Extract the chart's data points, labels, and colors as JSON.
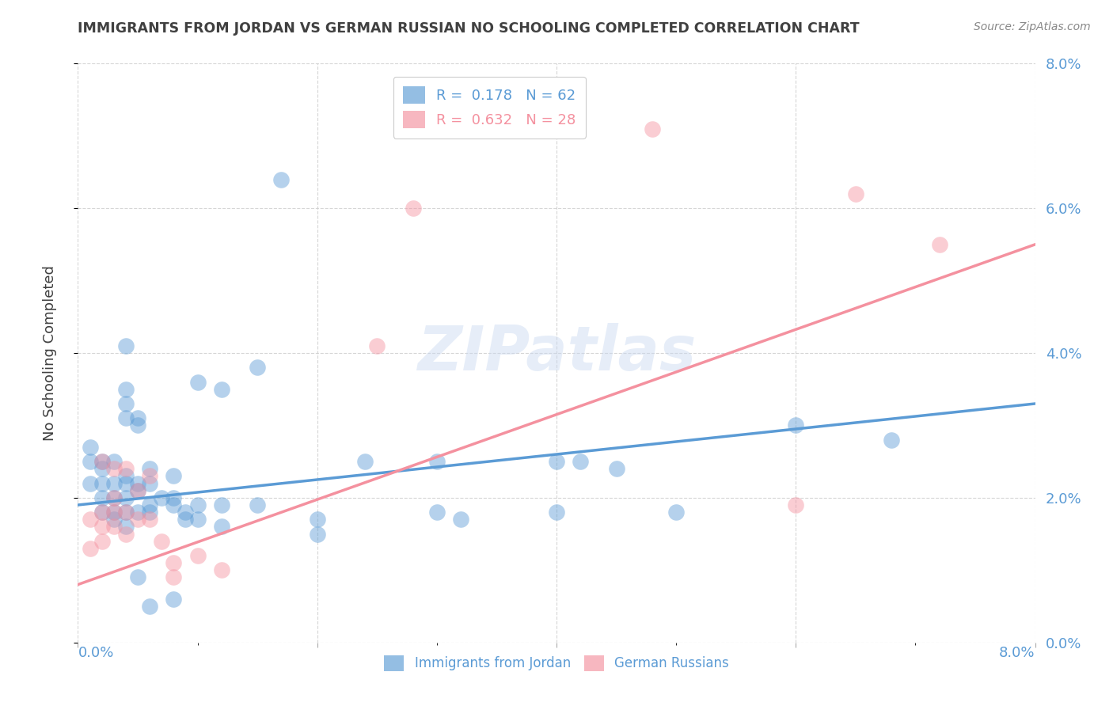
{
  "title": "IMMIGRANTS FROM JORDAN VS GERMAN RUSSIAN NO SCHOOLING COMPLETED CORRELATION CHART",
  "source": "Source: ZipAtlas.com",
  "ylabel": "No Schooling Completed",
  "watermark": "ZIPatlas",
  "legend_entries": [
    {
      "label": "R =  0.178   N = 62",
      "color": "#5b9bd5"
    },
    {
      "label": "R =  0.632   N = 28",
      "color": "#f4919f"
    }
  ],
  "legend_labels_bottom": [
    "Immigrants from Jordan",
    "German Russians"
  ],
  "xlim": [
    0.0,
    0.08
  ],
  "ylim": [
    0.0,
    0.08
  ],
  "blue_scatter": [
    [
      0.001,
      0.027
    ],
    [
      0.001,
      0.025
    ],
    [
      0.001,
      0.022
    ],
    [
      0.002,
      0.025
    ],
    [
      0.002,
      0.024
    ],
    [
      0.002,
      0.022
    ],
    [
      0.002,
      0.02
    ],
    [
      0.002,
      0.018
    ],
    [
      0.003,
      0.025
    ],
    [
      0.003,
      0.022
    ],
    [
      0.003,
      0.02
    ],
    [
      0.003,
      0.018
    ],
    [
      0.003,
      0.017
    ],
    [
      0.004,
      0.041
    ],
    [
      0.004,
      0.035
    ],
    [
      0.004,
      0.033
    ],
    [
      0.004,
      0.031
    ],
    [
      0.004,
      0.023
    ],
    [
      0.004,
      0.022
    ],
    [
      0.004,
      0.02
    ],
    [
      0.004,
      0.018
    ],
    [
      0.004,
      0.016
    ],
    [
      0.005,
      0.031
    ],
    [
      0.005,
      0.03
    ],
    [
      0.005,
      0.022
    ],
    [
      0.005,
      0.021
    ],
    [
      0.005,
      0.018
    ],
    [
      0.005,
      0.009
    ],
    [
      0.006,
      0.024
    ],
    [
      0.006,
      0.022
    ],
    [
      0.006,
      0.019
    ],
    [
      0.006,
      0.018
    ],
    [
      0.006,
      0.005
    ],
    [
      0.007,
      0.02
    ],
    [
      0.008,
      0.023
    ],
    [
      0.008,
      0.02
    ],
    [
      0.008,
      0.019
    ],
    [
      0.008,
      0.006
    ],
    [
      0.009,
      0.018
    ],
    [
      0.009,
      0.017
    ],
    [
      0.01,
      0.036
    ],
    [
      0.01,
      0.019
    ],
    [
      0.01,
      0.017
    ],
    [
      0.012,
      0.035
    ],
    [
      0.012,
      0.019
    ],
    [
      0.012,
      0.016
    ],
    [
      0.015,
      0.038
    ],
    [
      0.015,
      0.019
    ],
    [
      0.017,
      0.064
    ],
    [
      0.02,
      0.017
    ],
    [
      0.02,
      0.015
    ],
    [
      0.024,
      0.025
    ],
    [
      0.03,
      0.025
    ],
    [
      0.03,
      0.018
    ],
    [
      0.032,
      0.017
    ],
    [
      0.04,
      0.025
    ],
    [
      0.04,
      0.018
    ],
    [
      0.042,
      0.025
    ],
    [
      0.045,
      0.024
    ],
    [
      0.05,
      0.018
    ],
    [
      0.06,
      0.03
    ],
    [
      0.068,
      0.028
    ]
  ],
  "pink_scatter": [
    [
      0.001,
      0.017
    ],
    [
      0.001,
      0.013
    ],
    [
      0.002,
      0.025
    ],
    [
      0.002,
      0.018
    ],
    [
      0.002,
      0.016
    ],
    [
      0.002,
      0.014
    ],
    [
      0.003,
      0.024
    ],
    [
      0.003,
      0.02
    ],
    [
      0.003,
      0.018
    ],
    [
      0.003,
      0.016
    ],
    [
      0.004,
      0.024
    ],
    [
      0.004,
      0.018
    ],
    [
      0.004,
      0.015
    ],
    [
      0.005,
      0.021
    ],
    [
      0.005,
      0.017
    ],
    [
      0.006,
      0.023
    ],
    [
      0.006,
      0.017
    ],
    [
      0.007,
      0.014
    ],
    [
      0.008,
      0.011
    ],
    [
      0.008,
      0.009
    ],
    [
      0.01,
      0.012
    ],
    [
      0.012,
      0.01
    ],
    [
      0.025,
      0.041
    ],
    [
      0.028,
      0.06
    ],
    [
      0.048,
      0.071
    ],
    [
      0.06,
      0.019
    ],
    [
      0.065,
      0.062
    ],
    [
      0.072,
      0.055
    ]
  ],
  "blue_line": {
    "x": [
      0.0,
      0.08
    ],
    "y": [
      0.019,
      0.033
    ]
  },
  "pink_line": {
    "x": [
      0.0,
      0.08
    ],
    "y": [
      0.008,
      0.055
    ]
  },
  "blue_color": "#5b9bd5",
  "pink_color": "#f4919f",
  "bg_color": "#ffffff",
  "grid_color": "#cccccc",
  "title_color": "#404040",
  "axis_label_color": "#5b9bd5",
  "scatter_alpha": 0.45,
  "scatter_size": 220
}
